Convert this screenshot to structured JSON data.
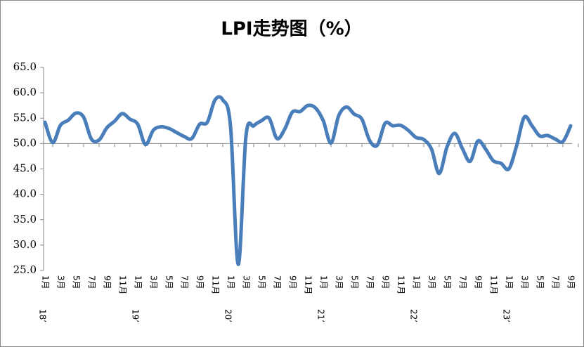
{
  "chart_data": {
    "type": "line",
    "title": "LPI走势图（%）",
    "categories": [
      "1月",
      null,
      "3月",
      null,
      "5月",
      null,
      "7月",
      null,
      "9月",
      null,
      "11月",
      null,
      "1月",
      null,
      "3月",
      null,
      "5月",
      null,
      "7月",
      null,
      "9月",
      null,
      "11月",
      null,
      "1月",
      null,
      "3月",
      null,
      "5月",
      null,
      "7月",
      null,
      "9月",
      null,
      "11月",
      null,
      "1月",
      null,
      "3月",
      null,
      "5月",
      null,
      "7月",
      null,
      "9月",
      null,
      "11月",
      null,
      "1月",
      null,
      "3月",
      null,
      "5月",
      null,
      "7月",
      null,
      "9月",
      null,
      "11月",
      null,
      "1月",
      null,
      "3月",
      null,
      "5月",
      null,
      "7月",
      null,
      "9月"
    ],
    "year_groups": [
      "18’",
      "19’",
      "20’",
      "21’",
      "22’",
      "23’"
    ],
    "series": [
      {
        "name": "LPI",
        "color": "#4a7ebb",
        "values": [
          54.2,
          50.2,
          53.6,
          54.6,
          56.0,
          55.2,
          50.9,
          50.7,
          53.1,
          54.4,
          55.9,
          54.8,
          53.8,
          49.8,
          52.6,
          53.3,
          53.0,
          52.2,
          51.4,
          51.0,
          53.8,
          54.2,
          58.6,
          58.6,
          53.4,
          26.2,
          51.5,
          53.5,
          54.5,
          55.0,
          51.0,
          52.8,
          56.2,
          56.3,
          57.5,
          57.0,
          54.5,
          50.1,
          55.5,
          57.2,
          55.8,
          54.8,
          50.6,
          49.7,
          54.0,
          53.5,
          53.6,
          52.6,
          51.2,
          50.8,
          48.9,
          44.1,
          49.3,
          52.0,
          49.0,
          46.5,
          50.5,
          48.9,
          46.6,
          46.1,
          45.0,
          49.5,
          55.2,
          53.5,
          51.5,
          51.6,
          50.9,
          50.4,
          53.5
        ]
      }
    ],
    "ylim": [
      25,
      65
    ],
    "yticks": [
      {
        "value": 25,
        "label": "25.0"
      },
      {
        "value": 30,
        "label": "30.0"
      },
      {
        "value": 35,
        "label": "35.0"
      },
      {
        "value": 40,
        "label": "40.0"
      },
      {
        "value": 45,
        "label": "45.0"
      },
      {
        "value": 50,
        "label": "50.0"
      },
      {
        "value": 55,
        "label": "55.0"
      },
      {
        "value": 60,
        "label": "60.0"
      },
      {
        "value": 65,
        "label": "65.0"
      }
    ],
    "x_axis_crosses": 50
  }
}
